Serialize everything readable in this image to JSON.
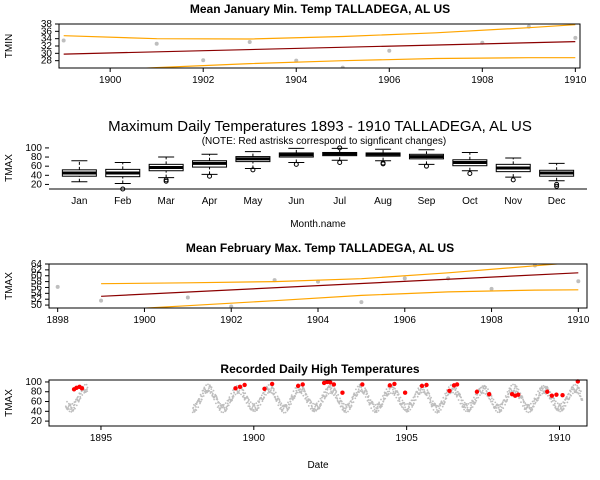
{
  "figure": {
    "panel1_title": "Mean January Min. Temp TALLADEGA, AL US",
    "panel2_title": "Maximum Daily Temperatures 1893 - 1910 TALLADEGA, AL US",
    "panel2_note": "(NOTE: Red astrisks correspond to signficant changes)",
    "panel3_title": "Mean February Max. Temp TALLADEGA, AL US",
    "panel4_title": "Recorded Daily High Temperatures"
  },
  "colors": {
    "points": "#bebebe",
    "trend": "#8b0000",
    "band": "#ffa500",
    "highlight": "#ff0000",
    "box": "#000000"
  },
  "chart_data": [
    {
      "type": "scatter",
      "title": "Mean January Min. Temp TALLADEGA, AL US",
      "xlabel": "",
      "ylabel": "TMIN",
      "xlim": [
        1898.9,
        1910.1
      ],
      "ylim": [
        26,
        38
      ],
      "xticks": [
        1900,
        1902,
        1904,
        1906,
        1908,
        1910
      ],
      "yticks": [
        28,
        30,
        32,
        34,
        36,
        38
      ],
      "points": [
        {
          "x": 1899,
          "y": 33.5
        },
        {
          "x": 1901,
          "y": 32.6
        },
        {
          "x": 1902,
          "y": 28.1
        },
        {
          "x": 1903,
          "y": 33.1
        },
        {
          "x": 1904,
          "y": 28.0
        },
        {
          "x": 1905,
          "y": 26.1
        },
        {
          "x": 1906,
          "y": 30.7
        },
        {
          "x": 1908,
          "y": 32.9
        },
        {
          "x": 1909,
          "y": 37.3
        },
        {
          "x": 1910,
          "y": 34.2
        }
      ],
      "trend": [
        [
          1899,
          29.8
        ],
        [
          1910,
          33.2
        ]
      ],
      "band_upper": [
        [
          1899,
          34.8
        ],
        [
          1901,
          34.0
        ],
        [
          1903,
          33.9
        ],
        [
          1905,
          34.6
        ],
        [
          1907,
          35.6
        ],
        [
          1909,
          37.0
        ],
        [
          1910,
          37.8
        ]
      ],
      "band_lower": [
        [
          1899,
          24.9
        ],
        [
          1901,
          26.1
        ],
        [
          1903,
          27.2
        ],
        [
          1905,
          28.0
        ],
        [
          1907,
          28.6
        ],
        [
          1909,
          28.8
        ],
        [
          1910,
          28.8
        ]
      ]
    },
    {
      "type": "box",
      "title": "Maximum Daily Temperatures 1893 - 1910 TALLADEGA, AL US",
      "subtitle": "(NOTE: Red astrisks correspond to signficant changes)",
      "xlabel": "Month.name",
      "ylabel": "TMAX",
      "ylim": [
        10,
        102
      ],
      "yticks": [
        20,
        40,
        60,
        80,
        100
      ],
      "categories": [
        "Jan",
        "Feb",
        "Mar",
        "Apr",
        "May",
        "Jun",
        "Jul",
        "Aug",
        "Sep",
        "Oct",
        "Nov",
        "Dec"
      ],
      "boxes": [
        {
          "min": 26,
          "q1": 38,
          "median": 45,
          "q3": 52,
          "max": 72,
          "outliers": []
        },
        {
          "min": 22,
          "q1": 37,
          "median": 45,
          "q3": 53,
          "max": 68,
          "outliers": [
            10
          ]
        },
        {
          "min": 35,
          "q1": 50,
          "median": 57,
          "q3": 64,
          "max": 80,
          "outliers": [
            30,
            27
          ]
        },
        {
          "min": 42,
          "q1": 58,
          "median": 66,
          "q3": 72,
          "max": 86,
          "outliers": [
            38
          ]
        },
        {
          "min": 55,
          "q1": 70,
          "median": 76,
          "q3": 81,
          "max": 92,
          "outliers": [
            52
          ]
        },
        {
          "min": 68,
          "q1": 80,
          "median": 85,
          "q3": 89,
          "max": 99,
          "outliers": [
            64
          ]
        },
        {
          "min": 73,
          "q1": 83,
          "median": 87,
          "q3": 90,
          "max": 99,
          "outliers": [
            68,
            100
          ]
        },
        {
          "min": 72,
          "q1": 82,
          "median": 86,
          "q3": 89,
          "max": 97,
          "outliers": [
            65,
            67
          ]
        },
        {
          "min": 64,
          "q1": 76,
          "median": 81,
          "q3": 86,
          "max": 96,
          "outliers": [
            60
          ]
        },
        {
          "min": 50,
          "q1": 61,
          "median": 68,
          "q3": 74,
          "max": 90,
          "outliers": [
            44
          ]
        },
        {
          "min": 36,
          "q1": 48,
          "median": 56,
          "q3": 64,
          "max": 78,
          "outliers": [
            30
          ]
        },
        {
          "min": 28,
          "q1": 38,
          "median": 45,
          "q3": 51,
          "max": 66,
          "outliers": [
            20,
            16
          ]
        }
      ]
    },
    {
      "type": "scatter",
      "title": "Mean February Max. Temp TALLADEGA, AL US",
      "xlabel": "",
      "ylabel": "TMAX",
      "xlim": [
        1897.8,
        1910.2
      ],
      "ylim": [
        49,
        64
      ],
      "xticks": [
        1898,
        1900,
        1902,
        1904,
        1906,
        1908,
        1910
      ],
      "yticks": [
        50,
        52,
        54,
        56,
        58,
        60,
        62,
        64
      ],
      "points": [
        {
          "x": 1898,
          "y": 56.2
        },
        {
          "x": 1899,
          "y": 51.5
        },
        {
          "x": 1901,
          "y": 52.6
        },
        {
          "x": 1902,
          "y": 49.5
        },
        {
          "x": 1903,
          "y": 58.5
        },
        {
          "x": 1904,
          "y": 58.0
        },
        {
          "x": 1905,
          "y": 51.0
        },
        {
          "x": 1906,
          "y": 59.1
        },
        {
          "x": 1907,
          "y": 59.1
        },
        {
          "x": 1908,
          "y": 55.5
        },
        {
          "x": 1909,
          "y": 63.5
        },
        {
          "x": 1910,
          "y": 58.1
        }
      ],
      "trend": [
        [
          1899,
          53.0
        ],
        [
          1910,
          61.0
        ]
      ],
      "band_upper": [
        [
          1899,
          57.3
        ],
        [
          1901,
          57.6
        ],
        [
          1903,
          58.0
        ],
        [
          1905,
          59.0
        ],
        [
          1907,
          61.0
        ],
        [
          1909,
          63.4
        ],
        [
          1910,
          64.6
        ]
      ],
      "band_lower": [
        [
          1899,
          48.1
        ],
        [
          1901,
          49.8
        ],
        [
          1903,
          51.5
        ],
        [
          1905,
          53.3
        ],
        [
          1907,
          54.5
        ],
        [
          1909,
          55.1
        ],
        [
          1910,
          55.2
        ]
      ]
    },
    {
      "type": "scatter",
      "title": "Recorded Daily High Temperatures",
      "xlabel": "Date",
      "ylabel": "TMAX",
      "xlim": [
        1893.3,
        1910.9
      ],
      "ylim": [
        10,
        104
      ],
      "xticks": [
        1895,
        1900,
        1905,
        1910
      ],
      "yticks": [
        20,
        40,
        60,
        80,
        100
      ],
      "record_periods": [
        [
          1893.85,
          1894.55
        ],
        [
          1898.0,
          1910.75
        ]
      ],
      "highlighted": [
        {
          "x": 1894.12,
          "y": 85
        },
        {
          "x": 1894.2,
          "y": 88
        },
        {
          "x": 1894.3,
          "y": 90
        },
        {
          "x": 1894.38,
          "y": 87
        },
        {
          "x": 1899.4,
          "y": 87
        },
        {
          "x": 1899.55,
          "y": 90
        },
        {
          "x": 1899.7,
          "y": 94
        },
        {
          "x": 1900.35,
          "y": 86
        },
        {
          "x": 1900.6,
          "y": 96
        },
        {
          "x": 1901.45,
          "y": 92
        },
        {
          "x": 1901.6,
          "y": 95
        },
        {
          "x": 1902.3,
          "y": 98
        },
        {
          "x": 1902.4,
          "y": 100
        },
        {
          "x": 1902.5,
          "y": 99
        },
        {
          "x": 1902.62,
          "y": 95
        },
        {
          "x": 1902.9,
          "y": 78
        },
        {
          "x": 1903.55,
          "y": 95
        },
        {
          "x": 1904.45,
          "y": 93
        },
        {
          "x": 1904.6,
          "y": 96
        },
        {
          "x": 1904.95,
          "y": 78
        },
        {
          "x": 1905.5,
          "y": 92
        },
        {
          "x": 1905.65,
          "y": 94
        },
        {
          "x": 1906.4,
          "y": 82
        },
        {
          "x": 1906.55,
          "y": 93
        },
        {
          "x": 1906.65,
          "y": 95
        },
        {
          "x": 1907.3,
          "y": 80
        },
        {
          "x": 1907.7,
          "y": 75
        },
        {
          "x": 1908.45,
          "y": 75
        },
        {
          "x": 1908.55,
          "y": 72
        },
        {
          "x": 1908.65,
          "y": 74
        },
        {
          "x": 1909.6,
          "y": 80
        },
        {
          "x": 1909.75,
          "y": 72
        },
        {
          "x": 1909.9,
          "y": 74
        },
        {
          "x": 1910.1,
          "y": 73
        },
        {
          "x": 1910.6,
          "y": 101
        }
      ]
    }
  ]
}
